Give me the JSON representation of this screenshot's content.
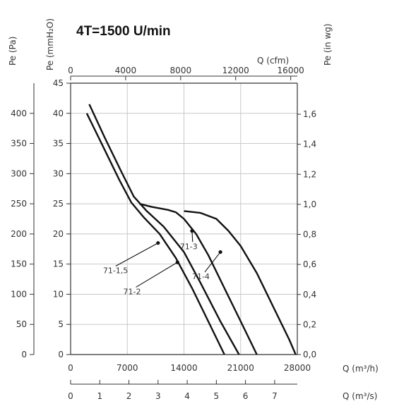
{
  "chart_data": {
    "type": "line",
    "title": "4T=1500 U/min",
    "axes": {
      "pe_pa": {
        "label": "Pe (Pa)",
        "ticks": [
          "0",
          "50",
          "100",
          "150",
          "200",
          "250",
          "300",
          "350",
          "400"
        ],
        "range": [
          0,
          450
        ]
      },
      "pe_mmh2o": {
        "label": "Pe (mmH₂O)",
        "ticks": [
          "0",
          "5",
          "10",
          "15",
          "20",
          "25",
          "30",
          "35",
          "40",
          "45"
        ],
        "range": [
          0,
          45
        ]
      },
      "pe_inwg": {
        "label": "Pe (in wg)",
        "ticks": [
          "0,0",
          "0,2",
          "0,4",
          "0,6",
          "0,8",
          "1,0",
          "1,2",
          "1,4",
          "1,6"
        ],
        "range": [
          0,
          1.8
        ]
      },
      "q_cfm": {
        "label": "Q (cfm)",
        "ticks": [
          "0",
          "4000",
          "8000",
          "12000",
          "16000"
        ],
        "range": [
          0,
          16941
        ]
      },
      "q_m3h": {
        "label": "Q (m³/h)",
        "ticks": [
          "0",
          "7000",
          "14000",
          "21000",
          "28000"
        ],
        "range": [
          0,
          28000
        ]
      },
      "q_m3s": {
        "label": "Q (m³/s)",
        "ticks": [
          "0",
          "1",
          "2",
          "3",
          "4",
          "5",
          "6",
          "7"
        ],
        "range": [
          0,
          7.78
        ]
      }
    },
    "x_unit": "m3/h",
    "y_unit": "Pa",
    "grid": true,
    "series": [
      {
        "name": "71-1,5",
        "points": [
          [
            2000,
            400
          ],
          [
            4000,
            345
          ],
          [
            6000,
            290
          ],
          [
            7500,
            252
          ],
          [
            9000,
            228
          ],
          [
            11000,
            200
          ],
          [
            13000,
            160
          ],
          [
            15000,
            110
          ],
          [
            17000,
            55
          ],
          [
            19000,
            0
          ]
        ]
      },
      {
        "name": "71-2",
        "points": [
          [
            2300,
            415
          ],
          [
            4200,
            360
          ],
          [
            6200,
            305
          ],
          [
            7800,
            262
          ],
          [
            9400,
            238
          ],
          [
            11500,
            212
          ],
          [
            14000,
            170
          ],
          [
            16000,
            120
          ],
          [
            18500,
            55
          ],
          [
            20800,
            0
          ]
        ]
      },
      {
        "name": "71-3",
        "points": [
          [
            8500,
            250
          ],
          [
            10000,
            245
          ],
          [
            12000,
            240
          ],
          [
            13000,
            236
          ],
          [
            14000,
            225
          ],
          [
            15500,
            200
          ],
          [
            17000,
            165
          ],
          [
            19000,
            110
          ],
          [
            21000,
            55
          ],
          [
            23000,
            0
          ]
        ]
      },
      {
        "name": "71-4",
        "points": [
          [
            14000,
            238
          ],
          [
            16000,
            235
          ],
          [
            18000,
            225
          ],
          [
            19500,
            205
          ],
          [
            21000,
            180
          ],
          [
            23000,
            135
          ],
          [
            25000,
            80
          ],
          [
            27000,
            25
          ],
          [
            27800,
            0
          ]
        ]
      }
    ],
    "annotations": [
      {
        "text": "71-1,5",
        "x": 4000,
        "y": 135,
        "target": [
          10800,
          185
        ]
      },
      {
        "text": "71-3",
        "x": 13500,
        "y": 175,
        "target": [
          15000,
          205
        ]
      },
      {
        "text": "71-2",
        "x": 6500,
        "y": 100,
        "target": [
          13200,
          153
        ]
      },
      {
        "text": "71-4",
        "x": 15000,
        "y": 125,
        "target": [
          18500,
          170
        ]
      }
    ]
  }
}
